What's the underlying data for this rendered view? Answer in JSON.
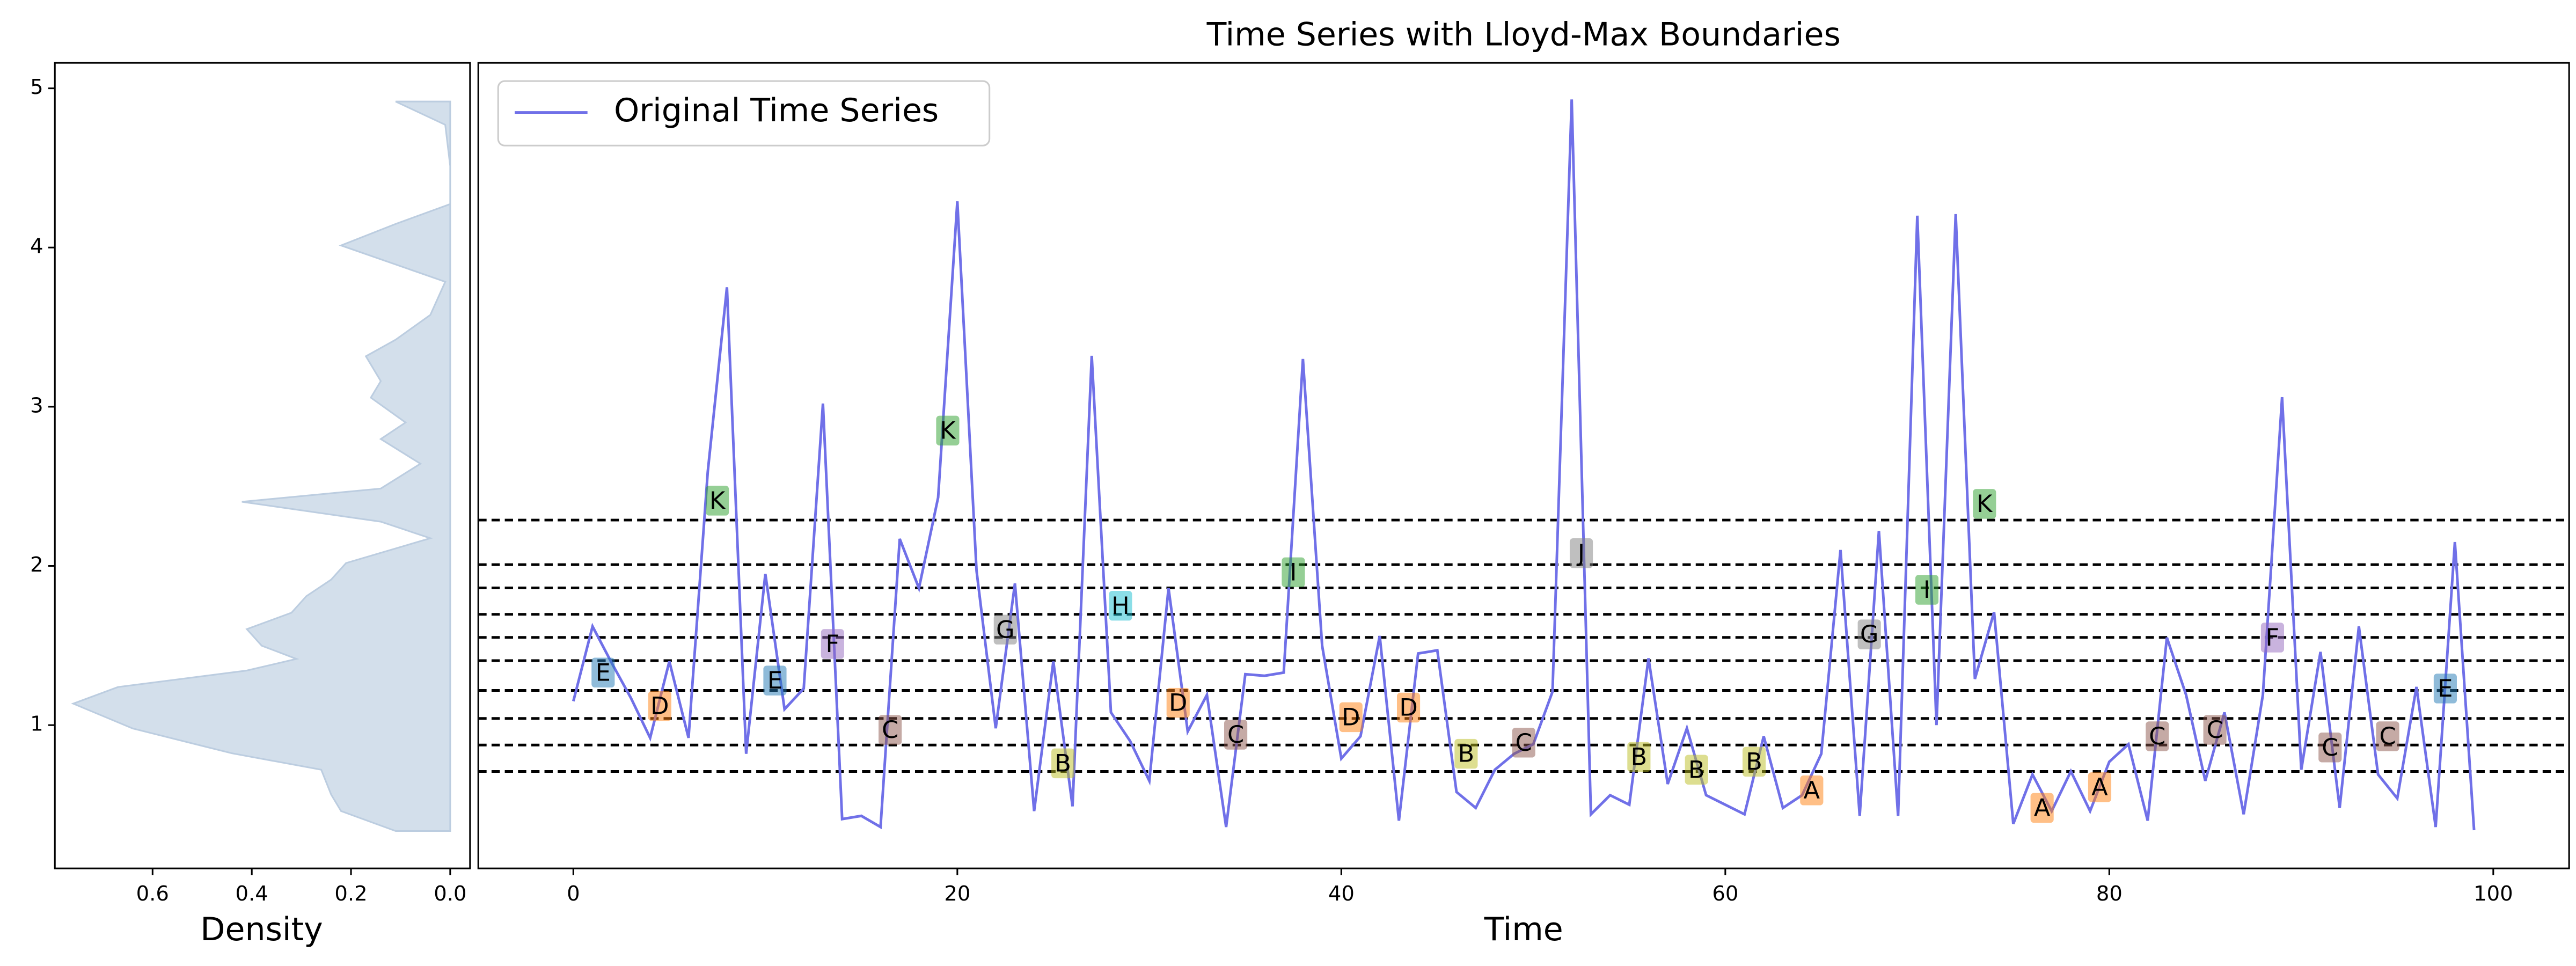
{
  "chart_data": [
    {
      "type": "density",
      "orientation": "horizontal",
      "xlabel": "Density",
      "xlim": [
        0.797,
        -0.04
      ],
      "xticks": [
        0.6,
        0.4,
        0.2,
        {
          "value": 0,
          "label": "0.0"
        }
      ],
      "ylim": [
        0.1,
        5.16
      ],
      "yticks": [
        1,
        2,
        3,
        4,
        5
      ],
      "color": "#d3dfeb",
      "edge_color": "#bccde0",
      "y": [
        0.335,
        0.46,
        0.564,
        0.72,
        0.823,
        0.979,
        1.135,
        1.239,
        1.343,
        1.416,
        1.499,
        1.603,
        1.706,
        1.81,
        1.914,
        2.018,
        2.174,
        2.278,
        2.403,
        2.486,
        2.642,
        2.797,
        2.901,
        3.057,
        3.161,
        3.317,
        3.421,
        3.577,
        3.785,
        4.013,
        4.148,
        4.273,
        4.512,
        4.771,
        4.917
      ],
      "values": [
        0.11,
        0.22,
        0.24,
        0.26,
        0.44,
        0.64,
        0.76,
        0.67,
        0.41,
        0.31,
        0.38,
        0.41,
        0.32,
        0.29,
        0.24,
        0.21,
        0.04,
        0.14,
        0.42,
        0.14,
        0.06,
        0.14,
        0.09,
        0.16,
        0.14,
        0.17,
        0.11,
        0.04,
        0.01,
        0.22,
        0.11,
        0,
        0,
        0.01,
        0.11
      ]
    },
    {
      "type": "line",
      "title": "Time Series with Lloyd-Max Boundaries",
      "xlabel": "Time",
      "xlim": [
        -4.95,
        103.95
      ],
      "xticks": [
        0,
        20,
        40,
        60,
        80,
        100
      ],
      "ylim": [
        0.1,
        5.16
      ],
      "legend": "upper left",
      "x": [
        0,
        1,
        2,
        3,
        4,
        5,
        6,
        7,
        8,
        9,
        10,
        11,
        12,
        13,
        14,
        15,
        16,
        17,
        18,
        19,
        20,
        21,
        22,
        23,
        24,
        25,
        26,
        27,
        28,
        29,
        30,
        31,
        32,
        33,
        34,
        35,
        36,
        37,
        38,
        39,
        40,
        41,
        42,
        43,
        44,
        45,
        46,
        47,
        48,
        49,
        50,
        51,
        52,
        53,
        54,
        55,
        56,
        57,
        58,
        59,
        60,
        61,
        62,
        63,
        64,
        65,
        66,
        67,
        68,
        69,
        70,
        71,
        72,
        73,
        74,
        75,
        76,
        77,
        78,
        79,
        80,
        81,
        82,
        83,
        84,
        85,
        86,
        87,
        88,
        89,
        90,
        91,
        92,
        93,
        94,
        95,
        96,
        97,
        98,
        99
      ],
      "series": [
        {
          "name": "Original Time Series",
          "color": "#7070e8",
          "values": [
            1.15,
            1.62,
            1.39,
            1.17,
            0.92,
            1.4,
            0.92,
            2.59,
            3.75,
            0.82,
            1.95,
            1.1,
            1.23,
            3.02,
            0.41,
            0.43,
            0.36,
            2.17,
            1.86,
            2.43,
            4.29,
            1.97,
            0.98,
            1.89,
            0.46,
            1.4,
            0.49,
            3.32,
            1.08,
            0.9,
            0.65,
            1.86,
            0.96,
            1.19,
            0.36,
            1.32,
            1.31,
            1.33,
            3.3,
            1.5,
            0.79,
            0.93,
            1.56,
            0.4,
            1.45,
            1.47,
            0.58,
            0.48,
            0.72,
            0.82,
            0.88,
            1.21,
            4.93,
            0.44,
            0.56,
            0.5,
            1.42,
            0.63,
            0.98,
            0.56,
            0.5,
            0.44,
            0.93,
            0.48,
            0.56,
            0.82,
            2.1,
            0.43,
            2.22,
            0.43,
            4.2,
            1.0,
            4.21,
            1.29,
            1.71,
            0.38,
            0.69,
            0.46,
            0.71,
            0.46,
            0.77,
            0.88,
            0.4,
            1.55,
            1.19,
            0.65,
            1.08,
            0.44,
            1.19,
            3.06,
            0.72,
            1.46,
            0.48,
            1.62,
            0.69,
            0.54,
            1.24,
            0.36,
            2.15,
            0.34
          ]
        }
      ],
      "boundaries": [
        2.288,
        2.008,
        1.862,
        1.696,
        1.551,
        1.405,
        1.218,
        1.042,
        0.875,
        0.709
      ],
      "label_colors": {
        "A": "#ff7f0e",
        "B": "#bcbd22",
        "C": "#8c564b",
        "D": "#ff7f0e",
        "E": "#1f77b4",
        "F": "#9467bd",
        "G": "#7f7f7f",
        "H": "#17becf",
        "I": "#2ca02c",
        "J": "#7f7f7f",
        "K": "#2ca02c"
      },
      "annotations": [
        {
          "x": 1.55,
          "y": 1.33,
          "label": "E"
        },
        {
          "x": 4.5,
          "y": 1.12,
          "label": "D"
        },
        {
          "x": 7.5,
          "y": 2.41,
          "label": "K"
        },
        {
          "x": 10.5,
          "y": 1.28,
          "label": "E"
        },
        {
          "x": 13.5,
          "y": 1.51,
          "label": "F"
        },
        {
          "x": 16.5,
          "y": 0.97,
          "label": "C"
        },
        {
          "x": 19.5,
          "y": 2.85,
          "label": "K"
        },
        {
          "x": 22.5,
          "y": 1.6,
          "label": "G"
        },
        {
          "x": 25.5,
          "y": 0.76,
          "label": "B"
        },
        {
          "x": 28.5,
          "y": 1.75,
          "label": "H"
        },
        {
          "x": 31.5,
          "y": 1.14,
          "label": "D"
        },
        {
          "x": 34.5,
          "y": 0.94,
          "label": "C"
        },
        {
          "x": 37.5,
          "y": 1.96,
          "label": "I"
        },
        {
          "x": 40.5,
          "y": 1.05,
          "label": "D"
        },
        {
          "x": 43.5,
          "y": 1.11,
          "label": "D"
        },
        {
          "x": 46.5,
          "y": 0.82,
          "label": "B"
        },
        {
          "x": 49.5,
          "y": 0.89,
          "label": "C"
        },
        {
          "x": 52.5,
          "y": 2.08,
          "label": "J"
        },
        {
          "x": 55.5,
          "y": 0.8,
          "label": "B"
        },
        {
          "x": 58.5,
          "y": 0.72,
          "label": "B"
        },
        {
          "x": 61.5,
          "y": 0.77,
          "label": "B"
        },
        {
          "x": 64.5,
          "y": 0.59,
          "label": "A"
        },
        {
          "x": 67.5,
          "y": 1.57,
          "label": "G"
        },
        {
          "x": 70.5,
          "y": 1.85,
          "label": "I"
        },
        {
          "x": 73.5,
          "y": 2.39,
          "label": "K"
        },
        {
          "x": 76.5,
          "y": 0.48,
          "label": "A"
        },
        {
          "x": 79.5,
          "y": 0.61,
          "label": "A"
        },
        {
          "x": 82.5,
          "y": 0.93,
          "label": "C"
        },
        {
          "x": 85.5,
          "y": 0.97,
          "label": "C"
        },
        {
          "x": 88.5,
          "y": 1.55,
          "label": "F"
        },
        {
          "x": 91.5,
          "y": 0.86,
          "label": "C"
        },
        {
          "x": 94.5,
          "y": 0.93,
          "label": "C"
        },
        {
          "x": 97.5,
          "y": 1.23,
          "label": "E"
        }
      ]
    }
  ]
}
